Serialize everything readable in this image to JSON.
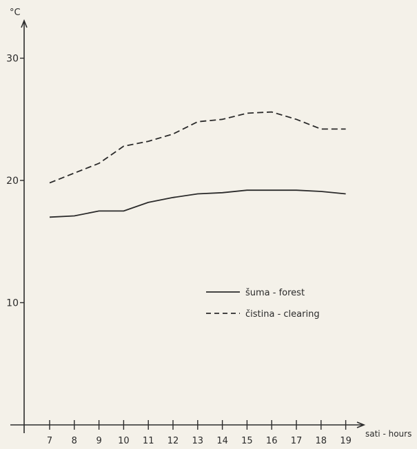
{
  "chart_data": {
    "type": "line",
    "x": [
      7,
      8,
      9,
      10,
      11,
      12,
      13,
      14,
      15,
      16,
      17,
      18,
      19
    ],
    "x_ticks": [
      "7",
      "8",
      "9",
      "10",
      "11",
      "12",
      "13",
      "14",
      "15",
      "16",
      "17",
      "18",
      "19"
    ],
    "xlim": [
      5.3,
      19.5
    ],
    "y_ticks": [
      "10",
      "20",
      "30"
    ],
    "y_tick_values": [
      10,
      20,
      30
    ],
    "ylim": [
      0,
      33
    ],
    "xlabel": "sati - hours",
    "ylabel": "°C",
    "grid": false,
    "legend_position": "center-right",
    "series": [
      {
        "name": "šuma - forest",
        "style": "solid",
        "values": [
          17.0,
          17.1,
          17.5,
          17.5,
          18.2,
          18.6,
          18.9,
          19.0,
          19.2,
          19.2,
          19.2,
          19.1,
          18.9
        ]
      },
      {
        "name": "čistina - clearing",
        "style": "dashed",
        "values": [
          19.8,
          20.6,
          21.4,
          22.8,
          23.2,
          23.8,
          24.8,
          25.0,
          25.5,
          25.6,
          25.0,
          24.2,
          24.2
        ]
      }
    ],
    "colors": {
      "line": "#2a2a2a",
      "background": "#f4f1e9"
    }
  }
}
